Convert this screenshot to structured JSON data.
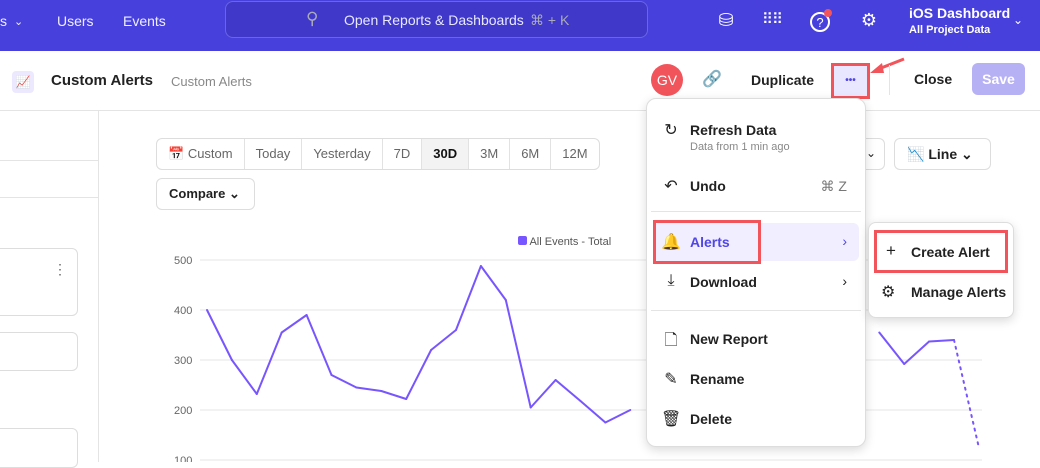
{
  "topbar": {
    "nav_partial": "s",
    "nav_users": "Users",
    "nav_events": "Events",
    "search_placeholder": "Open Reports & Dashboards",
    "search_shortcut": "⌘ + K",
    "project_name": "iOS Dashboard",
    "project_scope": "All Project Data",
    "notification_color": "#f2545b"
  },
  "header": {
    "title": "Custom Alerts",
    "subtitle": "Custom Alerts",
    "avatar": "GV",
    "duplicate": "Duplicate",
    "more": "•••",
    "close": "Close",
    "save": "Save"
  },
  "toolbar": {
    "date_ranges": [
      "Custom",
      "Today",
      "Yesterday",
      "7D",
      "30D",
      "3M",
      "6M",
      "12M"
    ],
    "selected_range": "30D",
    "compare": "Compare",
    "chart_type": "Line"
  },
  "menu": {
    "refresh": "Refresh Data",
    "refresh_sub": "Data from 1 min ago",
    "undo": "Undo",
    "undo_shortcut": "⌘ Z",
    "alerts": "Alerts",
    "download": "Download",
    "new_report": "New Report",
    "rename": "Rename",
    "delete": "Delete"
  },
  "submenu": {
    "create_alert": "Create Alert",
    "manage_alerts": "Manage Alerts"
  },
  "chart_data": {
    "type": "line",
    "series": [
      {
        "name": "All Events - Total",
        "color": "#7856ff",
        "values": [
          400,
          300,
          232,
          355,
          390,
          270,
          245,
          238,
          222,
          320,
          360,
          488,
          420,
          205,
          260,
          218,
          175,
          200,
          null,
          null,
          null,
          null,
          null,
          null,
          null,
          null,
          null,
          355,
          292,
          337,
          340,
          125
        ],
        "last_point_incomplete": true
      }
    ],
    "y_ticks": [
      "500",
      "400",
      "300",
      "200",
      "100"
    ],
    "ylim": [
      100,
      500
    ],
    "grid": true,
    "legend": "top"
  }
}
